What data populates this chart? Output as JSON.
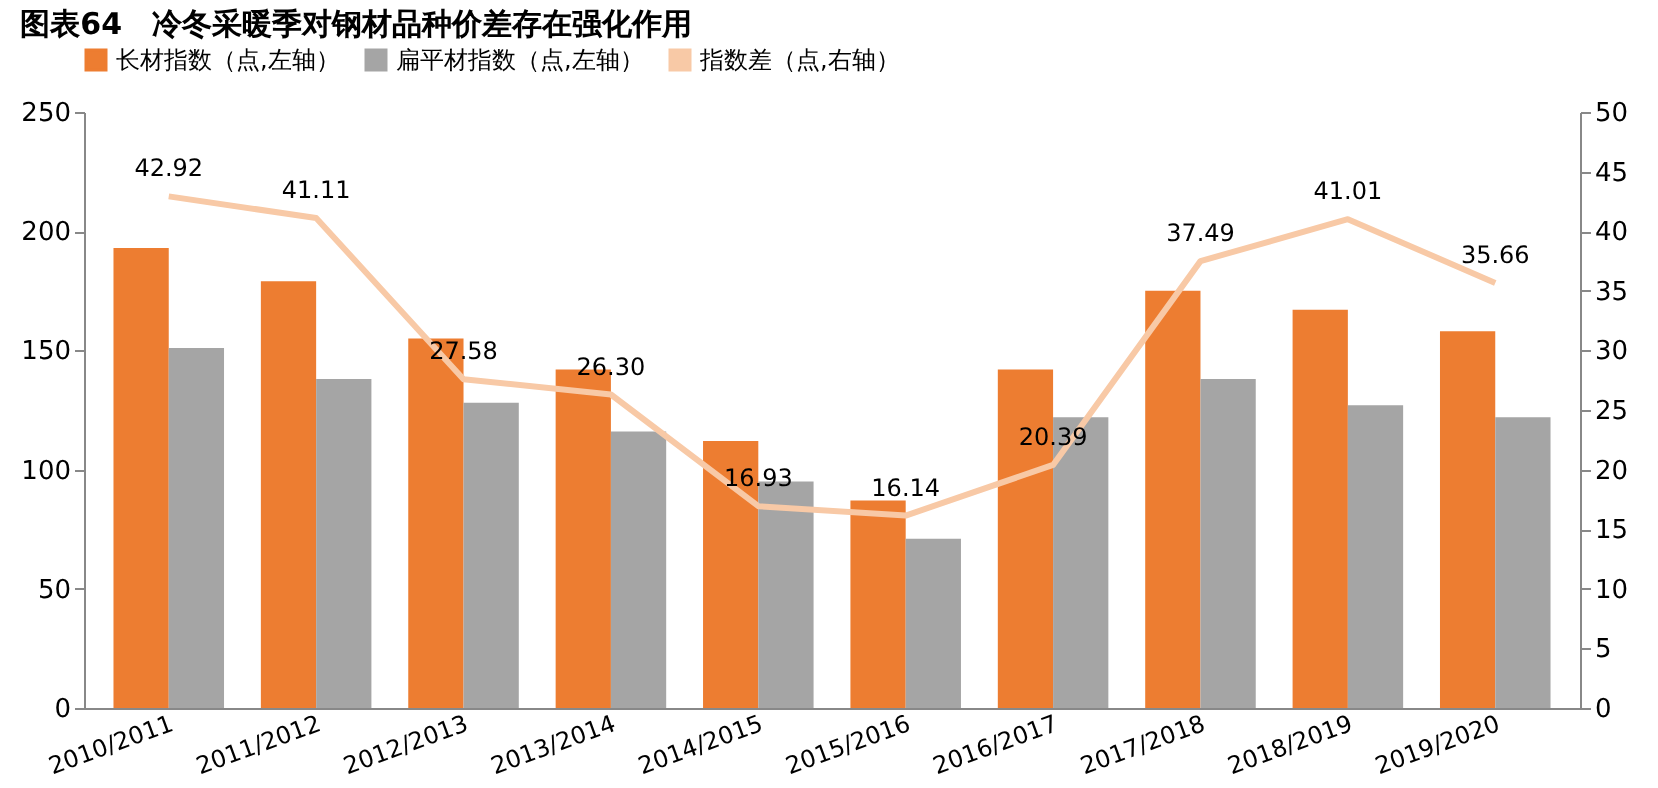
{
  "chart_data": {
    "type": "bar",
    "title": "图表64　冷冬采暖季对钢材品种价差存在强化作用",
    "categories": [
      "2010/2011",
      "2011/2012",
      "2012/2013",
      "2013/2014",
      "2014/2015",
      "2015/2016",
      "2016/2017",
      "2017/2018",
      "2018/2019",
      "2019/2020"
    ],
    "series": [
      {
        "name": "长材指数（点,左轴）",
        "color": "#ed7d31",
        "values": [
          193,
          179,
          155,
          142,
          112,
          87,
          142,
          175,
          167,
          158
        ]
      },
      {
        "name": "扁平材指数（点,左轴）",
        "color": "#a5a5a5",
        "values": [
          151,
          138,
          128,
          116,
          95,
          71,
          122,
          138,
          127,
          122
        ]
      },
      {
        "name": "指数差（点,右轴）",
        "color": "#f8c9a6",
        "type": "line",
        "axis": "y2",
        "values": [
          42.92,
          41.11,
          27.58,
          26.3,
          16.93,
          16.14,
          20.39,
          37.49,
          41.01,
          35.66
        ],
        "value_labels": [
          "42.92",
          "41.11",
          "27.58",
          "26.30",
          "16.93",
          "16.14",
          "20.39",
          "37.49",
          "41.01",
          "35.66"
        ]
      }
    ],
    "ylim": [
      0,
      250
    ],
    "yticks": [
      0,
      50,
      100,
      150,
      200,
      250
    ],
    "y2lim": [
      0,
      50
    ],
    "y2ticks": [
      0,
      5,
      10,
      15,
      20,
      25,
      30,
      35,
      40,
      45,
      50
    ],
    "grid": false,
    "legend": "top",
    "marker": "none",
    "line_style": "solid"
  }
}
